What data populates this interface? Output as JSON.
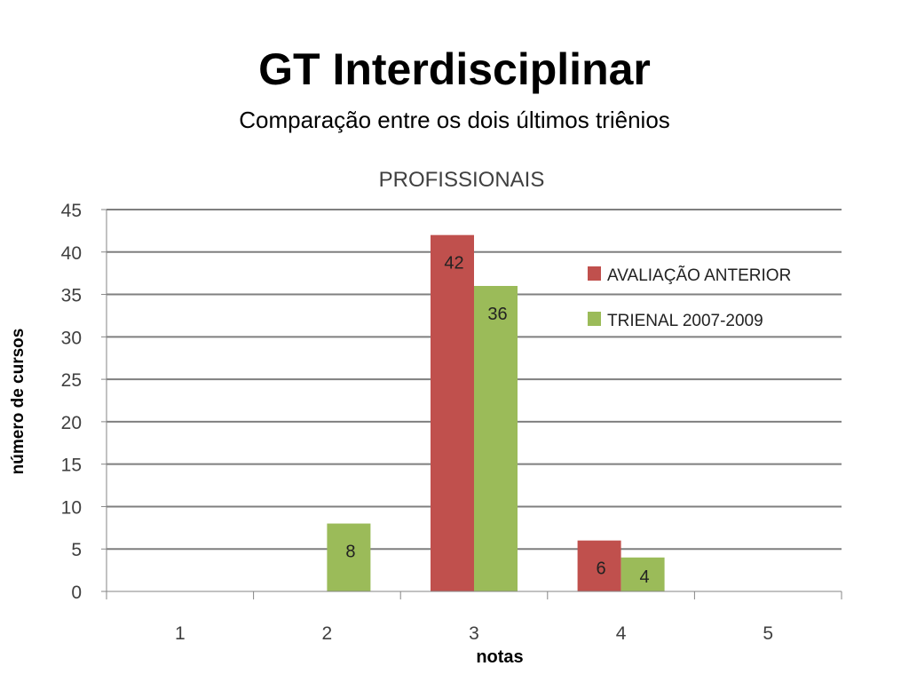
{
  "slide": {
    "title": "GT Interdisciplinar",
    "subtitle": "Comparação entre  os dois últimos triênios"
  },
  "chart_data": {
    "type": "bar",
    "title": "PROFISSIONAIS",
    "xlabel": "notas",
    "ylabel": "número de cursos",
    "categories": [
      "1",
      "2",
      "3",
      "4",
      "5"
    ],
    "series": [
      {
        "name": "AVALIAÇÃO ANTERIOR",
        "color": "#c0504d",
        "values": [
          0,
          0,
          42,
          6,
          0
        ]
      },
      {
        "name": "TRIENAL 2007-2009",
        "color": "#9bbb59",
        "values": [
          0,
          8,
          36,
          4,
          0
        ]
      }
    ],
    "ylim": [
      0,
      45
    ],
    "yticks": [
      0,
      5,
      10,
      15,
      20,
      25,
      30,
      35,
      40,
      45
    ],
    "grid": true,
    "legend": "right",
    "data_labels": true
  }
}
